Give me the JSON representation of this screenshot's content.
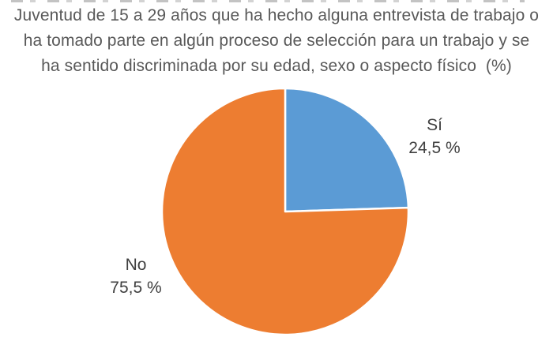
{
  "chart_data": {
    "type": "pie",
    "title": "Juventud de 15 a 29 años que ha hecho alguna entrevista de trabajo o ha tomado parte en algún proceso de selección para un trabajo y se ha sentido discriminada por su edad, sexo o aspecto físico  (%)",
    "title_lines": [
      "Juventud de 15 a 29 años que ha hecho alguna entrevista de trabajo o",
      "ha tomado parte en algún proceso de selección para un trabajo y se",
      "ha sentido discriminada por su edad, sexo o aspecto físico  (%)"
    ],
    "categories": [
      "Sí",
      "No"
    ],
    "values": [
      24.5,
      75.5
    ],
    "slices": [
      {
        "label": "Sí",
        "value": 24.5,
        "display_value": "24,5 %",
        "color": "#5B9BD5",
        "label_position": "outside-upper-right"
      },
      {
        "label": "No",
        "value": 75.5,
        "display_value": "75,5 %",
        "color": "#ED7D31",
        "label_position": "outside-lower-left"
      }
    ],
    "value_format": "percent_comma_decimal",
    "start_angle_deg": 0,
    "direction": "clockwise",
    "legend": "none",
    "labels_position": "outside",
    "slice_border_color": "#FFFFFF",
    "background_color": "#FFFFFF",
    "title_color": "#595959",
    "label_color": "#404040"
  }
}
